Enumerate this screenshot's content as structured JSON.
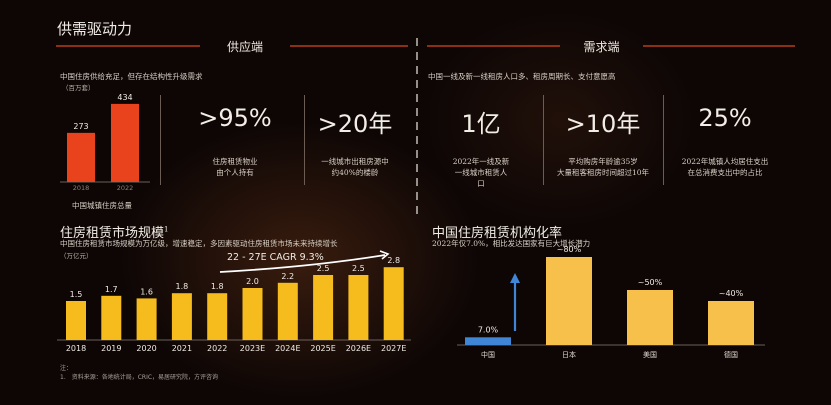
{
  "page_title": "供需驱动力",
  "supply": {
    "header": "供应端",
    "subtitle": "中国住房供给充足，但存在结构性升级需求",
    "unit": "（百万套）",
    "mini_caption": "中国城镇住房总量",
    "kpis": [
      {
        "value": ">95%",
        "desc_lines": [
          "住房租赁物业",
          "由个人持有"
        ]
      },
      {
        "value": ">20年",
        "desc_lines": [
          "一线城市出租房源中",
          "约40%的楼龄"
        ]
      }
    ]
  },
  "demand": {
    "header": "需求端",
    "subtitle": "中国一线及新一线租房人口多、租房周期长、支付意愿高",
    "kpis": [
      {
        "value": "1亿",
        "desc_lines": [
          "2022年一线及新",
          "一线城市租赁人",
          "口"
        ]
      },
      {
        "value": ">10年",
        "desc_lines": [
          "平均购房年龄逾35岁",
          "大量租客租房时间超过10年"
        ]
      },
      {
        "value": "25%",
        "desc_lines": [
          "2022年城镇人均居住支出",
          "在总消费支出中的占比"
        ]
      }
    ]
  },
  "market": {
    "title": "住房租赁市场规模",
    "title_sup": "1",
    "subtitle": "中国住房租赁市场规模为万亿级，增速稳定，多因素驱动住房租赁市场未来持续增长",
    "unit": "（万亿元）",
    "cagr_label": "22 - 27E CAGR 9.3%",
    "note_title": "注：",
    "note_text": "1.　资料来源：各地统计局，CRIC，易居研究院，方评咨询"
  },
  "institutional": {
    "title": "中国住房租赁机构化率",
    "subtitle": "2022年仅7.0%，相比发达国家有巨大增长潜力"
  },
  "chart_data": [
    {
      "type": "bar",
      "title": "",
      "categories": [
        "2018",
        "2022"
      ],
      "values": [
        273,
        434
      ],
      "xlabel": "中国城镇住房总量",
      "ylabel": "（百万套）",
      "colors": [
        "#e8431c"
      ]
    },
    {
      "type": "bar",
      "title": "住房租赁市场规模",
      "categories": [
        "2018",
        "2019",
        "2020",
        "2021",
        "2022",
        "2023E",
        "2024E",
        "2025E",
        "2026E",
        "2027E"
      ],
      "values": [
        1.5,
        1.7,
        1.6,
        1.8,
        1.8,
        2.0,
        2.2,
        2.5,
        2.5,
        2.8
      ],
      "ylabel": "（万亿元）",
      "annotation": "22 - 27E CAGR 9.3%",
      "colors": [
        "#f6bb1c"
      ]
    },
    {
      "type": "bar",
      "title": "中国住房租赁机构化率",
      "categories": [
        "中国",
        "日本",
        "美国",
        "德国"
      ],
      "labels": [
        "7.0%",
        "~80%",
        "~50%",
        "~40%"
      ],
      "values": [
        7.0,
        80,
        50,
        40
      ],
      "colors": [
        "#3f86d6",
        "#f6c04a"
      ]
    }
  ],
  "colors": {
    "supply_accent": "#e8431c",
    "demand_accent": "#e8601c",
    "market_bar": "#f6bb1c",
    "inst_bar": "#f6c04a",
    "inst_china": "#3f86d6"
  }
}
